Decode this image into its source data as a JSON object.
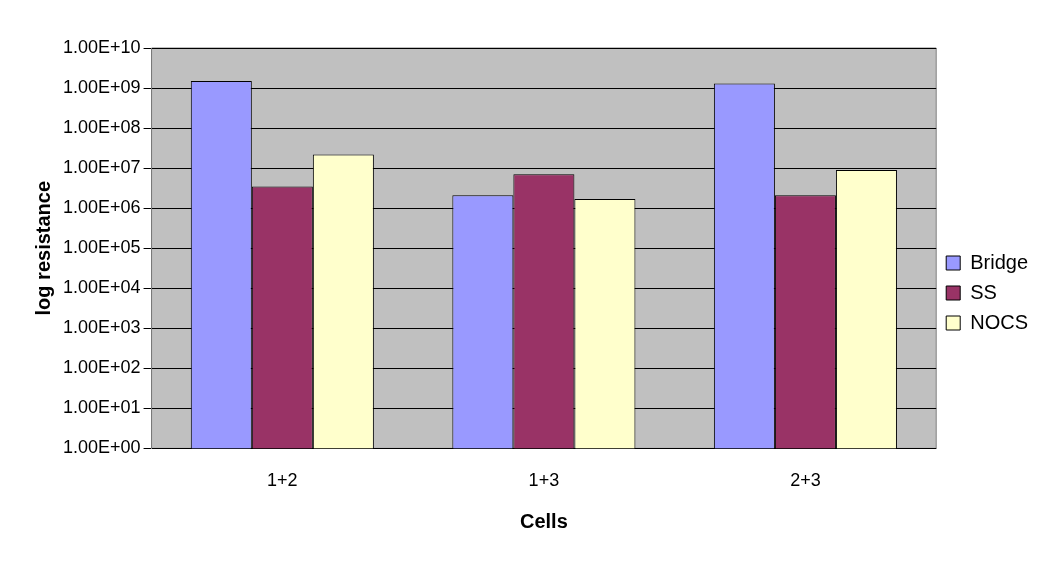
{
  "chart_data": {
    "type": "bar",
    "xlabel": "Cells",
    "ylabel": "log resistance",
    "categories": [
      "1+2",
      "1+3",
      "2+3"
    ],
    "series": [
      {
        "name": "Bridge",
        "color": "#9999ff",
        "values": [
          1500000000,
          2100000,
          1300000000
        ]
      },
      {
        "name": "SS",
        "color": "#993366",
        "values": [
          3500000,
          7000000,
          2100000
        ]
      },
      {
        "name": "NOCS",
        "color": "#ffffcc",
        "values": [
          22000000,
          1700000,
          9000000
        ]
      }
    ],
    "log": "y",
    "ylim": [
      1,
      10000000000
    ],
    "yticks": [
      {
        "value": 1,
        "label": "1.00E+00"
      },
      {
        "value": 10,
        "label": "1.00E+01"
      },
      {
        "value": 100,
        "label": "1.00E+02"
      },
      {
        "value": 1000,
        "label": "1.00E+03"
      },
      {
        "value": 10000,
        "label": "1.00E+04"
      },
      {
        "value": 100000,
        "label": "1.00E+05"
      },
      {
        "value": 1000000,
        "label": "1.00E+06"
      },
      {
        "value": 10000000,
        "label": "1.00E+07"
      },
      {
        "value": 100000000,
        "label": "1.00E+08"
      },
      {
        "value": 1000000000,
        "label": "1.00E+09"
      },
      {
        "value": 10000000000,
        "label": "1.00E+10"
      }
    ],
    "grid": "y",
    "legend": "right"
  }
}
